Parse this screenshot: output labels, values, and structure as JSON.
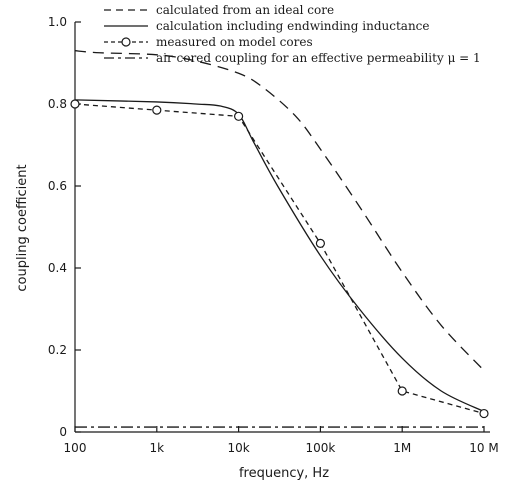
{
  "chart_data": {
    "type": "line",
    "xlabel": "frequency, Hz",
    "ylabel": "coupling coefficient",
    "x_scale": "log",
    "xlim": [
      100,
      10000000
    ],
    "ylim": [
      0,
      1.0
    ],
    "grid": false,
    "legend_position": "top",
    "x_ticks": [
      {
        "value": 100,
        "label": "100"
      },
      {
        "value": 1000,
        "label": "1k"
      },
      {
        "value": 10000,
        "label": "10k"
      },
      {
        "value": 100000,
        "label": "100k"
      },
      {
        "value": 1000000,
        "label": "1M"
      },
      {
        "value": 10000000,
        "label": "10 M"
      }
    ],
    "y_ticks": [
      {
        "value": 0,
        "label": "0"
      },
      {
        "value": 0.2,
        "label": "0.2"
      },
      {
        "value": 0.4,
        "label": "0.4"
      },
      {
        "value": 0.6,
        "label": "0.6"
      },
      {
        "value": 0.8,
        "label": "0.8"
      },
      {
        "value": 1.0,
        "label": "1.0"
      }
    ],
    "series": [
      {
        "name": "calculated from an ideal core",
        "style": "dashed",
        "x": [
          100,
          200,
          1000,
          3000,
          10000,
          20000,
          50000,
          100000,
          300000,
          1000000,
          3000000,
          10000000
        ],
        "y": [
          0.93,
          0.925,
          0.92,
          0.905,
          0.875,
          0.84,
          0.77,
          0.69,
          0.55,
          0.39,
          0.26,
          0.15
        ]
      },
      {
        "name": "calculation including endwinding inductance",
        "style": "solid",
        "x": [
          100,
          1000,
          3000,
          6000,
          10000,
          15000,
          30000,
          100000,
          300000,
          1000000,
          3000000,
          10000000
        ],
        "y": [
          0.81,
          0.805,
          0.8,
          0.795,
          0.775,
          0.71,
          0.6,
          0.43,
          0.3,
          0.18,
          0.1,
          0.05
        ],
        "markers": false
      },
      {
        "name": "measured on model cores",
        "style": "dashed-circle",
        "x": [
          100,
          1000,
          10000,
          100000,
          1000000,
          10000000
        ],
        "y": [
          0.8,
          0.785,
          0.77,
          0.46,
          0.1,
          0.045
        ],
        "markers": true
      },
      {
        "name": "air cored coupling for an effective permeability μ = 1",
        "style": "dash-dot",
        "x": [
          100,
          10000000
        ],
        "y": [
          0.012,
          0.012
        ]
      }
    ]
  }
}
